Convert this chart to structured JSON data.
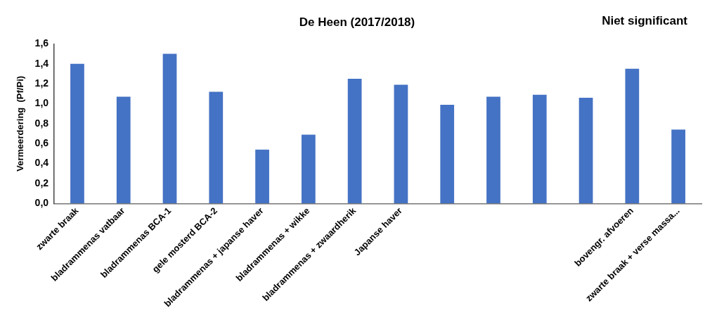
{
  "chart_data": {
    "type": "bar",
    "title": "De Heen (2017/2018)",
    "annotations": [
      "Niet significant"
    ],
    "ylabel": "Vermeerdering  (Pf/Pi)",
    "categories": [
      "zwarte braak",
      "bladrammenas vatbaar",
      "bladrammenas BCA-1",
      "gele mosterd BCA-2",
      "bladrammenas + japanse haver",
      "bladrammenas + wikke",
      "bladrammenas + zwaardherik",
      "Japanse haver",
      null,
      null,
      null,
      null,
      "bovengr. afvoeren",
      "zwarte braak + verse massa..."
    ],
    "values": [
      1.4,
      1.07,
      1.5,
      1.12,
      0.54,
      0.69,
      1.25,
      1.19,
      0.99,
      1.07,
      1.09,
      1.06,
      1.35,
      0.74
    ],
    "color": "#4472c4",
    "ylim": [
      0,
      1.6
    ],
    "yticks": [
      {
        "value": 0,
        "label": "0,0"
      },
      {
        "value": 0.2,
        "label": "0,2"
      },
      {
        "value": 0.4,
        "label": "0,4"
      },
      {
        "value": 0.6,
        "label": "0,6"
      },
      {
        "value": 0.8,
        "label": "0,8"
      },
      {
        "value": 1.0,
        "label": "1,0"
      },
      {
        "value": 1.2,
        "label": "1,2"
      },
      {
        "value": 1.4,
        "label": "1,4"
      },
      {
        "value": 1.6,
        "label": "1,6"
      }
    ],
    "grid": false,
    "legend": false
  }
}
